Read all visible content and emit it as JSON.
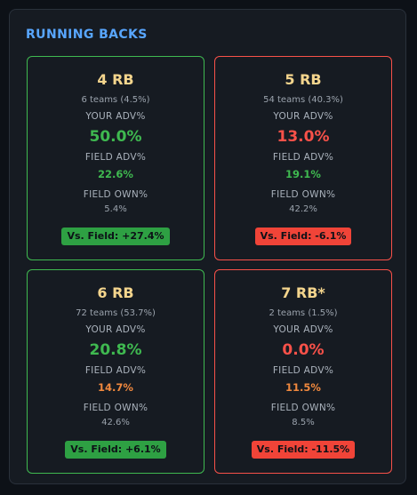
{
  "section": {
    "title": "RUNNING BACKS"
  },
  "labels": {
    "your_adv": "YOUR ADV%",
    "field_adv": "FIELD ADV%",
    "field_own": "FIELD OWN%"
  },
  "cards": [
    {
      "title": "4 RB",
      "teams": "6 teams (4.5%)",
      "your_adv": "50.0%",
      "field_adv": "22.6%",
      "field_own": "5.4%",
      "vs_field": "Vs. Field: +27.4%",
      "status": "positive"
    },
    {
      "title": "5 RB",
      "teams": "54 teams (40.3%)",
      "your_adv": "13.0%",
      "field_adv": "19.1%",
      "field_own": "42.2%",
      "vs_field": "Vs. Field: -6.1%",
      "status": "negative"
    },
    {
      "title": "6 RB",
      "teams": "72 teams (53.7%)",
      "your_adv": "20.8%",
      "field_adv": "14.7%",
      "field_own": "42.6%",
      "vs_field": "Vs. Field: +6.1%",
      "status": "positive"
    },
    {
      "title": "7 RB*",
      "teams": "2 teams (1.5%)",
      "your_adv": "0.0%",
      "field_adv": "11.5%",
      "field_own": "8.5%",
      "vs_field": "Vs. Field: -11.5%",
      "status": "negative"
    }
  ],
  "colors": {
    "positive": "#3fb950",
    "negative": "#f85149",
    "accent": "#58a6ff",
    "title": "#f4d58d",
    "warning": "#f0883e"
  }
}
